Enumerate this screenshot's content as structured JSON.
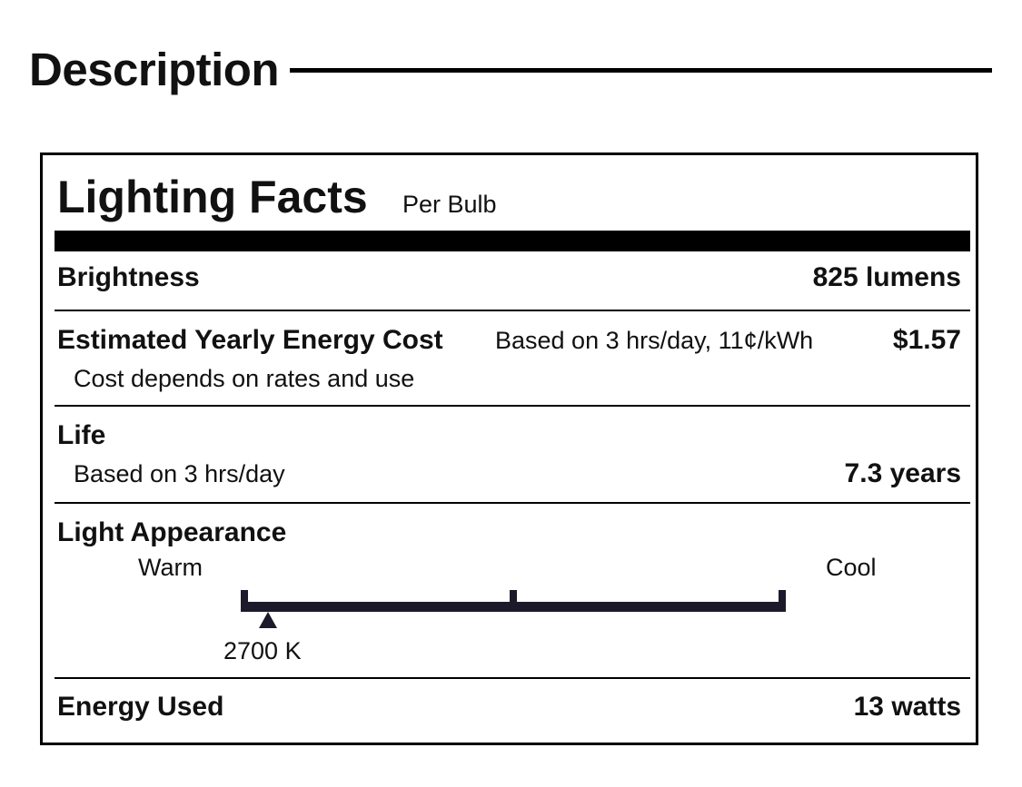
{
  "header": {
    "title": "Description"
  },
  "label": {
    "title": "Lighting Facts",
    "subtitle": "Per Bulb",
    "brightness": {
      "label": "Brightness",
      "value": "825 lumens"
    },
    "energy_cost": {
      "label": "Estimated Yearly Energy Cost",
      "basis": "Based on 3 hrs/day, 11¢/kWh",
      "value": "$1.57",
      "note": "Cost depends on rates and use"
    },
    "life": {
      "label": "Life",
      "note": "Based on 3 hrs/day",
      "value": "7.3 years"
    },
    "appearance": {
      "label": "Light Appearance",
      "warm_label": "Warm",
      "cool_label": "Cool",
      "marker_label": "2700 K",
      "marker_fraction": 0.05
    },
    "energy_used": {
      "label": "Energy Used",
      "value": "13 watts"
    }
  }
}
